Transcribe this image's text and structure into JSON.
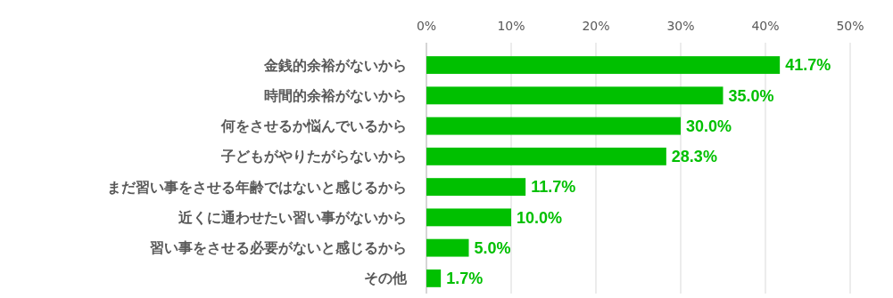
{
  "chart_data": {
    "type": "bar",
    "orientation": "horizontal",
    "categories": [
      "金銭的余裕がないから",
      "時間的余裕がないから",
      "何をさせるか悩んでいるから",
      "子どもがやりたがらないから",
      "まだ習い事をさせる年齢ではないと感じるから",
      "近くに通わせたい習い事がないから",
      "習い事をさせる必要がないと感じるから",
      "その他"
    ],
    "values": [
      41.7,
      35.0,
      30.0,
      28.3,
      11.7,
      10.0,
      5.0,
      1.7
    ],
    "value_labels": [
      "41.7%",
      "35.0%",
      "30.0%",
      "28.3%",
      "11.7%",
      "10.0%",
      "5.0%",
      "1.7%"
    ],
    "color": "#00c000",
    "xlim": [
      0,
      50
    ],
    "xticks": [
      {
        "value": 0,
        "label": "0%"
      },
      {
        "value": 10,
        "label": "10%"
      },
      {
        "value": 20,
        "label": "20%"
      },
      {
        "value": 30,
        "label": "30%"
      },
      {
        "value": 40,
        "label": "40%"
      },
      {
        "value": 50,
        "label": "50%"
      }
    ],
    "grid": "x"
  }
}
